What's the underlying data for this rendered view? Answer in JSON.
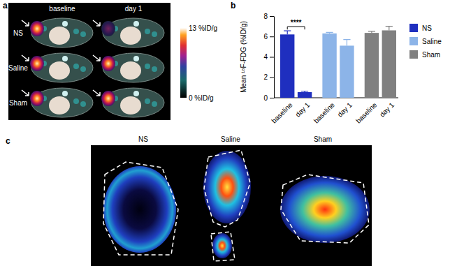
{
  "chart_data": {
    "type": "bar",
    "y_label": "Mean ¹⁸F-FDG (%ID/g)",
    "categories": [
      "baseline",
      "day 1"
    ],
    "series": [
      {
        "name": "NS",
        "color": "#1f2fbf",
        "values": [
          6.2,
          0.55
        ],
        "errors": [
          0.35,
          0.1
        ]
      },
      {
        "name": "Saline",
        "color": "#8cb4e8",
        "values": [
          6.3,
          5.1
        ],
        "errors": [
          0.1,
          0.6
        ]
      },
      {
        "name": "Sham",
        "color": "#808080",
        "values": [
          6.35,
          6.6
        ],
        "errors": [
          0.15,
          0.4
        ]
      }
    ],
    "ylim": [
      0,
      8
    ],
    "yticks": [
      0,
      2,
      4,
      6,
      8
    ],
    "annotations": [
      {
        "text": "****",
        "series": "NS"
      }
    ],
    "legend": "right",
    "grid": false
  },
  "panels": {
    "a": {
      "label": "a",
      "columns": [
        "baseline",
        "day 1"
      ],
      "rows": [
        "NS",
        "Saline",
        "Sham"
      ],
      "colorbar": {
        "range": [
          0,
          13
        ],
        "ticks": [
          {
            "value": 13,
            "label": "13 %ID/g"
          },
          {
            "value": 0,
            "label": "0 %ID/g"
          }
        ]
      }
    },
    "b": {
      "label": "b"
    },
    "c": {
      "label": "c",
      "titles": [
        "NS",
        "Saline",
        "Sham"
      ]
    }
  }
}
